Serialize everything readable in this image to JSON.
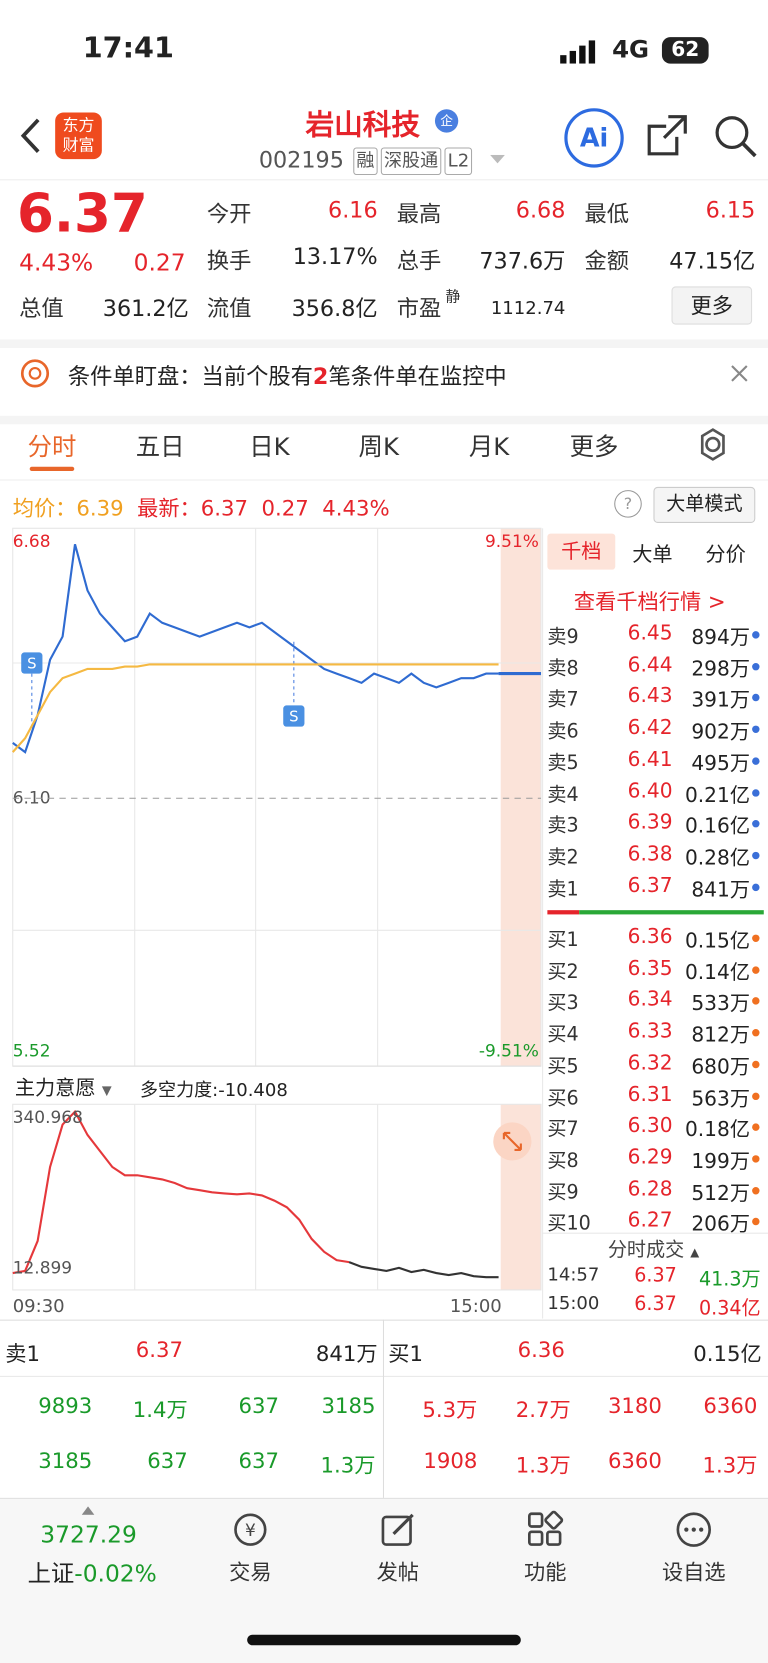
{
  "status": {
    "time": "17:41",
    "network": "4G",
    "battery": "62"
  },
  "header": {
    "logo": "东方财富",
    "title": "岩山科技",
    "code": "002195",
    "tags": [
      "融",
      "深股通",
      "L2"
    ],
    "ai": "Ai"
  },
  "quote": {
    "price": "6.37",
    "pct": "4.43%",
    "change": "0.27",
    "more": "更多",
    "fields": [
      {
        "label": "今开",
        "value": "6.16"
      },
      {
        "label": "最高",
        "value": "6.68"
      },
      {
        "label": "最低",
        "value": "6.15"
      },
      {
        "label": "换手",
        "value": "13.17%"
      },
      {
        "label": "总手",
        "value": "737.6万"
      },
      {
        "label": "金额",
        "value": "47.15亿"
      },
      {
        "label": "总值",
        "value": "361.2亿"
      },
      {
        "label": "流值",
        "value": "356.8亿"
      },
      {
        "label": "市盈",
        "sup": "静",
        "value": "1112.74"
      }
    ]
  },
  "notice": {
    "prefix": "条件单盯盘：当前个股有",
    "count": "2",
    "suffix": "笔条件单在监控中"
  },
  "tabs": [
    "分时",
    "五日",
    "日K",
    "周K",
    "月K",
    "更多"
  ],
  "info": {
    "avg_label": "均价：",
    "avg": "6.39",
    "latest_label": "最新：",
    "latest": "6.37",
    "change": "0.27",
    "pct": "4.43%",
    "mode": "大单模式"
  },
  "chart_data": [
    {
      "type": "line",
      "ylim": [
        5.52,
        6.68
      ],
      "yticks": [
        5.52,
        {
          "value": 6.1,
          "label": "6.10"
        },
        6.68
      ],
      "y2lim": [
        -9.51,
        9.51
      ],
      "y2ticks": [
        {
          "value": -9.51,
          "label": "-9.51%"
        },
        {
          "value": 9.51,
          "label": "9.51%"
        }
      ],
      "series": [
        {
          "color": "#2f6bd1",
          "values": [
            6.22,
            6.2,
            6.28,
            6.4,
            6.45,
            6.65,
            6.55,
            6.5,
            6.47,
            6.44,
            6.45,
            6.5,
            6.48,
            6.47,
            6.46,
            6.45,
            6.46,
            6.47,
            6.48,
            6.47,
            6.48,
            6.46,
            6.44,
            6.42,
            6.4,
            6.38,
            6.37,
            6.36,
            6.35,
            6.37,
            6.36,
            6.35,
            6.37,
            6.35,
            6.34,
            6.35,
            6.36,
            6.36,
            6.37,
            6.37
          ]
        },
        {
          "color": "#f5b942",
          "values": [
            6.2,
            6.23,
            6.28,
            6.33,
            6.36,
            6.37,
            6.38,
            6.38,
            6.38,
            6.385,
            6.385,
            6.39,
            6.39,
            6.39,
            6.39,
            6.39,
            6.39,
            6.39,
            6.39,
            6.39,
            6.39,
            6.39,
            6.39,
            6.39,
            6.39,
            6.39,
            6.39,
            6.39,
            6.39,
            6.39,
            6.39,
            6.39,
            6.39,
            6.39,
            6.39,
            6.39,
            6.39,
            6.39,
            6.39,
            6.39
          ]
        }
      ]
    },
    {
      "type": "line",
      "title": "主力意愿",
      "subtitle": "多空力度:-10.408",
      "ylim": [
        12.899,
        340.968
      ],
      "yticks": [
        12.899,
        340.968
      ],
      "x_labels": [
        "09:30",
        "15:00"
      ],
      "series": [
        {
          "color": "#e5383b",
          "values": [
            23,
            27,
            85,
            228,
            310,
            335,
            290,
            259,
            228,
            212,
            212,
            208,
            204,
            197,
            187,
            183,
            179,
            177,
            175,
            177,
            173,
            163,
            150,
            126,
            89,
            64,
            48,
            44,
            null,
            null,
            null,
            null,
            null,
            null,
            null,
            null,
            null,
            null,
            null,
            null
          ]
        },
        {
          "color": "#333333",
          "values": [
            null,
            null,
            null,
            null,
            null,
            null,
            null,
            null,
            null,
            null,
            null,
            null,
            null,
            null,
            null,
            null,
            null,
            null,
            null,
            null,
            null,
            null,
            null,
            null,
            null,
            null,
            null,
            44,
            35,
            31,
            27,
            33,
            25,
            29,
            23,
            19,
            23,
            17,
            15,
            15
          ]
        }
      ]
    }
  ],
  "book": {
    "tabs": [
      "千档",
      "大单",
      "分价"
    ],
    "link": "查看千档行情 >",
    "asks": [
      [
        "卖9",
        "6.45",
        "894万"
      ],
      [
        "卖8",
        "6.44",
        "298万"
      ],
      [
        "卖7",
        "6.43",
        "391万"
      ],
      [
        "卖6",
        "6.42",
        "902万"
      ],
      [
        "卖5",
        "6.41",
        "495万"
      ],
      [
        "卖4",
        "6.40",
        "0.21亿"
      ],
      [
        "卖3",
        "6.39",
        "0.16亿"
      ],
      [
        "卖2",
        "6.38",
        "0.28亿"
      ],
      [
        "卖1",
        "6.37",
        "841万"
      ]
    ],
    "bids": [
      [
        "买1",
        "6.36",
        "0.15亿"
      ],
      [
        "买2",
        "6.35",
        "0.14亿"
      ],
      [
        "买3",
        "6.34",
        "533万"
      ],
      [
        "买4",
        "6.33",
        "812万"
      ],
      [
        "买5",
        "6.32",
        "680万"
      ],
      [
        "买6",
        "6.31",
        "563万"
      ],
      [
        "买7",
        "6.30",
        "0.18亿"
      ],
      [
        "买8",
        "6.29",
        "199万"
      ],
      [
        "买9",
        "6.28",
        "512万"
      ],
      [
        "买10",
        "6.27",
        "206万"
      ]
    ]
  },
  "trades": {
    "title": "分时成交",
    "rows": [
      [
        "14:57",
        "6.37",
        "41.3万"
      ],
      [
        "15:00",
        "6.37",
        "0.34亿"
      ]
    ]
  },
  "level1": {
    "sell": [
      "卖1",
      "6.37",
      "841万"
    ],
    "buy": [
      "买1",
      "6.36",
      "0.15亿"
    ],
    "sell_rows": [
      [
        "9893",
        "1.4万",
        "637",
        "3185"
      ],
      [
        "3185",
        "637",
        "637",
        "1.3万"
      ]
    ],
    "buy_rows": [
      [
        "5.3万",
        "2.7万",
        "3180",
        "6360"
      ],
      [
        "1908",
        "1.3万",
        "6360",
        "1.3万"
      ]
    ]
  },
  "nav": {
    "index_value": "3727.29",
    "index_name": "上证",
    "index_pct": "-0.02%",
    "items": [
      "交易",
      "发帖",
      "功能",
      "设自选"
    ]
  }
}
